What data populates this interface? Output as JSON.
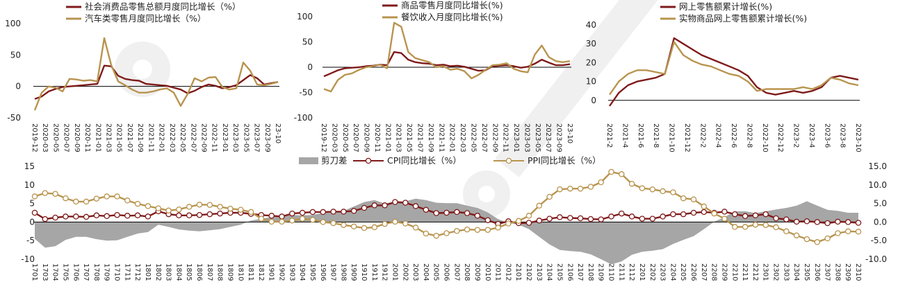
{
  "colors": {
    "primary": "#7f1a1a",
    "secondary": "#b8944e",
    "spread": "#a6a6a6",
    "axis": "#000000"
  },
  "chart_data": [
    {
      "type": "line",
      "legend": "top",
      "ylim": [
        -50,
        100
      ],
      "yticks": [
        "-50",
        "0",
        "50",
        "100"
      ],
      "xtick_labels": [
        "2019-12",
        "2020-03",
        "2020-05",
        "2020-07",
        "2020-09",
        "2020-11",
        "2021-01",
        "2021-03",
        "2021-05",
        "2021-07",
        "2021-09",
        "2021-11",
        "2022-01",
        "2022-03",
        "2022-05",
        "2022-07",
        "2022-09",
        "2022-11",
        "2023-01",
        "2023-03",
        "2023-05",
        "2023-07",
        "2023-09",
        "23-10"
      ],
      "series": [
        {
          "name": "社会消费品零售总额月度同比增长（%）",
          "values": [
            -20,
            -16,
            -8,
            -4,
            -1,
            0,
            1,
            2,
            3,
            4,
            33,
            32,
            17,
            12,
            10,
            9,
            4,
            3,
            2,
            1,
            -2,
            -5,
            -11,
            -7,
            -1,
            3,
            1,
            -3,
            -1,
            2,
            10,
            18,
            13,
            3,
            5,
            7
          ]
        },
        {
          "name": "汽车类零售月度同比增长（%）",
          "values": [
            -38,
            -10,
            0,
            -2,
            -8,
            12,
            11,
            9,
            10,
            8,
            77,
            34,
            8,
            2,
            -5,
            -10,
            -10,
            -8,
            -5,
            -3,
            -10,
            -31,
            -12,
            13,
            8,
            14,
            15,
            -1,
            -5,
            -3,
            38,
            25,
            3,
            2,
            4,
            7
          ]
        }
      ]
    },
    {
      "type": "line",
      "legend": "top",
      "ylim": [
        -100,
        100
      ],
      "yticks": [
        "-100",
        "-50",
        "0",
        "50",
        "100"
      ],
      "xtick_labels": [
        "2019-12",
        "2020-03",
        "2020-05",
        "2020-07",
        "2020-09",
        "2020-11",
        "2021-01",
        "2021-03",
        "2021-05",
        "2021-07",
        "2021-09",
        "2021-11",
        "2022-01",
        "2022-03",
        "2022-05",
        "2022-07",
        "2022-09",
        "2022-11",
        "2023-01",
        "2023-03",
        "2023-05",
        "2023-07",
        "2023-09",
        "23-10"
      ],
      "series": [
        {
          "name": "商品零售月度同比增长(%)",
          "values": [
            -18,
            -12,
            -6,
            -2,
            -1,
            0,
            2,
            3,
            5,
            4,
            30,
            28,
            15,
            10,
            8,
            7,
            4,
            5,
            2,
            3,
            1,
            -3,
            -7,
            -6,
            2,
            3,
            4,
            2,
            -1,
            1,
            7,
            15,
            9,
            4,
            4,
            6
          ]
        },
        {
          "name": "餐饮收入月度同比增长(%)",
          "values": [
            -43,
            -48,
            -25,
            -15,
            -12,
            -5,
            0,
            2,
            5,
            -2,
            88,
            80,
            30,
            18,
            14,
            10,
            0,
            2,
            -5,
            -3,
            -8,
            -22,
            -15,
            -5,
            4,
            5,
            8,
            -3,
            -8,
            -10,
            25,
            43,
            20,
            12,
            10,
            12
          ]
        }
      ]
    },
    {
      "type": "line",
      "legend": "top",
      "ylim": [
        -10,
        40
      ],
      "yticks": [
        "0",
        "10",
        "20",
        "30",
        "40"
      ],
      "xtick_labels": [
        "2021-2",
        "2021-4",
        "2021-6",
        "2021-8",
        "2021-10",
        "2021-12",
        "2022-2",
        "2022-4",
        "2022-6",
        "2022-8",
        "2022-10",
        "2022-12",
        "2023-2",
        "2023-4",
        "2023-6",
        "2023-8",
        "2023-10"
      ],
      "series": [
        {
          "name": "网上零售额累计增长(%)",
          "values": [
            -3,
            4,
            8,
            10,
            11,
            12,
            14,
            33,
            30,
            27,
            24,
            22,
            20,
            18,
            16,
            13,
            7,
            4,
            3,
            4,
            5,
            4,
            5,
            7,
            12,
            13,
            12,
            11
          ]
        },
        {
          "name": "实物商品网上零售额累计增长(%)",
          "values": [
            3,
            10,
            14,
            16,
            16,
            15,
            14,
            31,
            24,
            21,
            19,
            18,
            16,
            14,
            13,
            10,
            5,
            6,
            6,
            6,
            6,
            7,
            6,
            8,
            12,
            11,
            9,
            8
          ]
        }
      ]
    },
    {
      "type": "line",
      "legend": "top",
      "ylim": [
        -10,
        15
      ],
      "yticks": [
        "-10",
        "-5",
        "0",
        "5",
        "10",
        "15"
      ],
      "y2lim": [
        -10,
        15
      ],
      "y2ticks": [
        "-10.0",
        "-5.0",
        "0.0",
        "5.0",
        "10.0",
        "15.0"
      ],
      "xtick_labels": [
        "1701",
        "1703",
        "1704",
        "1705",
        "1706",
        "1707",
        "1708",
        "1709",
        "1710",
        "1711",
        "1712",
        "1801",
        "1802",
        "1803",
        "1804",
        "1805",
        "1806",
        "1807",
        "1808",
        "1809",
        "1810",
        "1811",
        "1812",
        "1901",
        "1902",
        "1903",
        "1904",
        "1905",
        "1906",
        "1907",
        "1908",
        "1909",
        "1910",
        "1911",
        "1912",
        "2001",
        "2002",
        "2003",
        "2004",
        "2005",
        "2006",
        "2007",
        "2008",
        "2009",
        "2010",
        "2011",
        "2012",
        "2101",
        "2102",
        "2103",
        "2104",
        "2105",
        "2106",
        "2107",
        "2108",
        "2109",
        "2110",
        "2111",
        "2112",
        "2201",
        "2202",
        "2203",
        "2204",
        "2205",
        "2206",
        "2207",
        "2208",
        "2209",
        "2210",
        "2211",
        "2212",
        "2301",
        "2302",
        "2303",
        "2304",
        "2305",
        "2306",
        "2307",
        "2308",
        "2309",
        "2310"
      ],
      "series": [
        {
          "name": "剪刀差",
          "type": "area",
          "values": [
            -4.5,
            -6.9,
            -6.5,
            -4.8,
            -4.0,
            -4.0,
            -4.6,
            -5.0,
            -4.9,
            -4.0,
            -3.1,
            -2.7,
            -0.7,
            -1.3,
            -2.0,
            -2.3,
            -2.5,
            -2.2,
            -1.9,
            -1.3,
            -0.7,
            0.4,
            0.9,
            1.4,
            1.6,
            1.9,
            1.8,
            1.9,
            2.5,
            2.6,
            3.0,
            4.2,
            5.4,
            5.9,
            5.0,
            5.5,
            5.6,
            6.3,
            5.9,
            5.2,
            5.1,
            5.1,
            4.4,
            3.8,
            2.6,
            0.8,
            -0.2,
            -0.7,
            -1.9,
            -4.0,
            -6.0,
            -7.5,
            -7.8,
            -8.0,
            -8.7,
            -10.0,
            -11.4,
            -10.6,
            -8.8,
            -8.0,
            -7.7,
            -7.3,
            -5.9,
            -4.8,
            -3.8,
            -1.9,
            0.1,
            1.3,
            2.9,
            2.9,
            2.4,
            2.9,
            3.4,
            3.8,
            4.4,
            5.6,
            4.4,
            3.3,
            3.0,
            2.5,
            2.5
          ]
        },
        {
          "name": "CPI同比增长（%）",
          "values": [
            2.5,
            0.8,
            1.2,
            1.5,
            1.5,
            1.4,
            1.8,
            1.6,
            1.9,
            1.7,
            1.8,
            1.5,
            2.9,
            2.1,
            1.8,
            1.8,
            1.9,
            2.1,
            2.3,
            2.5,
            2.5,
            2.2,
            1.9,
            1.7,
            1.5,
            2.3,
            2.5,
            2.7,
            2.7,
            2.8,
            2.8,
            3.0,
            3.8,
            4.5,
            4.5,
            5.4,
            5.2,
            4.3,
            3.3,
            2.4,
            2.5,
            2.7,
            2.4,
            1.7,
            0.5,
            -0.5,
            0.2,
            -0.3,
            -0.2,
            0.4,
            0.9,
            1.3,
            1.1,
            1.0,
            0.8,
            0.7,
            1.5,
            2.3,
            1.5,
            0.9,
            0.9,
            1.5,
            2.1,
            2.1,
            2.5,
            2.7,
            2.5,
            2.8,
            2.1,
            1.6,
            1.8,
            2.1,
            1.0,
            0.7,
            0.1,
            0.2,
            0.0,
            -0.3,
            0.1,
            0.0,
            -0.2
          ]
        },
        {
          "name": "PPI同比增长（%）",
          "values": [
            6.9,
            7.8,
            7.6,
            6.4,
            5.5,
            5.5,
            6.3,
            6.9,
            6.9,
            5.8,
            4.9,
            4.3,
            3.7,
            3.1,
            3.4,
            4.1,
            4.7,
            4.6,
            4.1,
            3.6,
            3.3,
            2.7,
            0.9,
            0.1,
            0.1,
            0.4,
            0.9,
            0.6,
            0.0,
            -0.3,
            -0.8,
            -1.2,
            -1.6,
            -1.4,
            -0.5,
            0.1,
            -0.4,
            -1.5,
            -3.1,
            -3.7,
            -3.0,
            -2.4,
            -2.0,
            -2.1,
            -2.1,
            -1.5,
            -0.4,
            0.3,
            1.7,
            4.4,
            6.8,
            8.8,
            9.0,
            9.0,
            9.5,
            10.7,
            13.5,
            12.9,
            10.3,
            9.1,
            8.8,
            8.3,
            8.0,
            6.4,
            6.1,
            4.2,
            2.3,
            0.9,
            -1.3,
            -1.3,
            -0.7,
            -0.8,
            -1.4,
            -2.5,
            -3.6,
            -4.6,
            -5.4,
            -4.4,
            -3.0,
            -2.5,
            -2.6
          ]
        }
      ]
    }
  ]
}
